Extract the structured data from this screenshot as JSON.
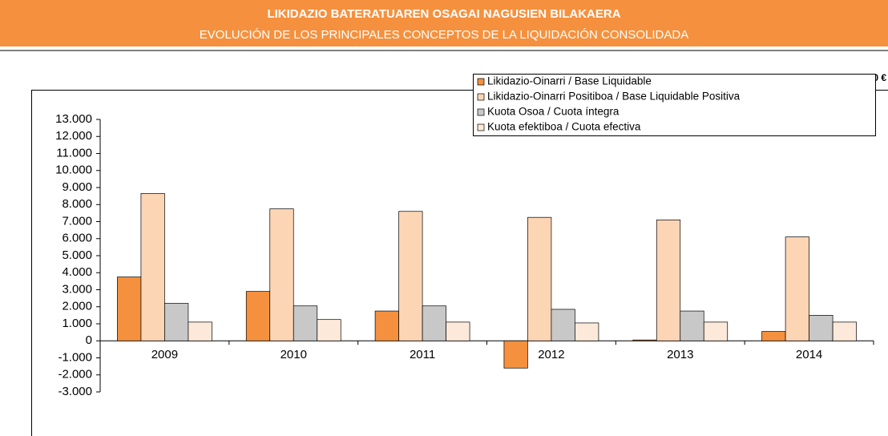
{
  "header": {
    "title": "LIKIDAZIO BATERATUAREN OSAGAI NAGUSIEN BILAKAERA",
    "subtitle": "EVOLUCIÓN DE LOS PRINCIPALES CONCEPTOS DE LA LIQUIDACIÓN CONSOLIDADA",
    "unit": "000.000 €"
  },
  "chart_data": {
    "type": "bar",
    "categories": [
      "2009",
      "2010",
      "2011",
      "2012",
      "2013",
      "2014"
    ],
    "series": [
      {
        "name": "Likidazio-Oinarri / Base Liquidable",
        "color": "#f5913e",
        "values": [
          3750,
          2900,
          1750,
          -1600,
          50,
          550
        ]
      },
      {
        "name": "Likidazio-Oinarri Positiboa / Base Liquidable Positiva",
        "color": "#fcd5b5",
        "values": [
          8650,
          7750,
          7600,
          7250,
          7100,
          6100
        ]
      },
      {
        "name": "Kuota Osoa / Cuota íntegra",
        "color": "#c8c8c8",
        "values": [
          2200,
          2050,
          2050,
          1850,
          1750,
          1500
        ]
      },
      {
        "name": "Kuota efektiboa / Cuota efectiva",
        "color": "#fde9d9",
        "values": [
          1100,
          1250,
          1100,
          1050,
          1100,
          1100
        ]
      }
    ],
    "ylim": [
      -3000,
      13000
    ],
    "yticks": [
      {
        "value": -3000,
        "label": "-3.000"
      },
      {
        "value": -2000,
        "label": "-2.000"
      },
      {
        "value": -1000,
        "label": "-1.000"
      },
      0,
      {
        "value": 1000,
        "label": "1.000"
      },
      {
        "value": 2000,
        "label": "2.000"
      },
      {
        "value": 3000,
        "label": "3.000"
      },
      {
        "value": 4000,
        "label": "4.000"
      },
      {
        "value": 5000,
        "label": "5.000"
      },
      {
        "value": 6000,
        "label": "6.000"
      },
      {
        "value": 7000,
        "label": "7.000"
      },
      {
        "value": 8000,
        "label": "8.000"
      },
      {
        "value": 9000,
        "label": "9.000"
      },
      {
        "value": 10000,
        "label": "10.000"
      },
      {
        "value": 11000,
        "label": "11.000"
      },
      {
        "value": 12000,
        "label": "12.000"
      },
      {
        "value": 13000,
        "label": "13.000"
      }
    ],
    "legend": "top-right",
    "grid": false
  }
}
